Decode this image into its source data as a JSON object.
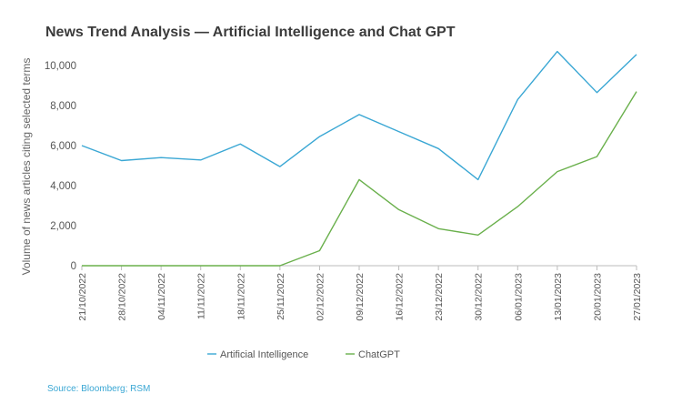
{
  "chart_data": {
    "type": "line",
    "title": "News Trend Analysis — Artificial Intelligence and Chat GPT",
    "ylabel": "Volume of news articles citing selected terms",
    "xlabel": "",
    "ylim": [
      0,
      10000
    ],
    "yticks": [
      0,
      2000,
      4000,
      6000,
      8000,
      10000
    ],
    "ytick_labels": [
      "0",
      "2,000",
      "4,000",
      "6,000",
      "8,000",
      "10,000"
    ],
    "grid": false,
    "legend_position": "bottom",
    "categories": [
      "21/10/2022",
      "28/10/2022",
      "04/11/2022",
      "11/11/2022",
      "18/11/2022",
      "25/11/2022",
      "02/12/2022",
      "09/12/2022",
      "16/12/2022",
      "23/12/2022",
      "30/12/2022",
      "06/01/2023",
      "13/01/2023",
      "20/01/2023",
      "27/01/2023"
    ],
    "series": [
      {
        "name": "Artificial Intelligence",
        "color": "#3aa7d4",
        "values": [
          6000,
          5250,
          5400,
          5280,
          6080,
          4950,
          6450,
          7550,
          6700,
          5850,
          4300,
          8300,
          10700,
          8650,
          10550
        ]
      },
      {
        "name": "ChatGPT",
        "color": "#6ab04c",
        "values": [
          0,
          0,
          0,
          0,
          0,
          0,
          750,
          4300,
          2800,
          1850,
          1530,
          2950,
          4700,
          5450,
          8700
        ]
      }
    ],
    "source": "Source: Bloomberg; RSM"
  }
}
